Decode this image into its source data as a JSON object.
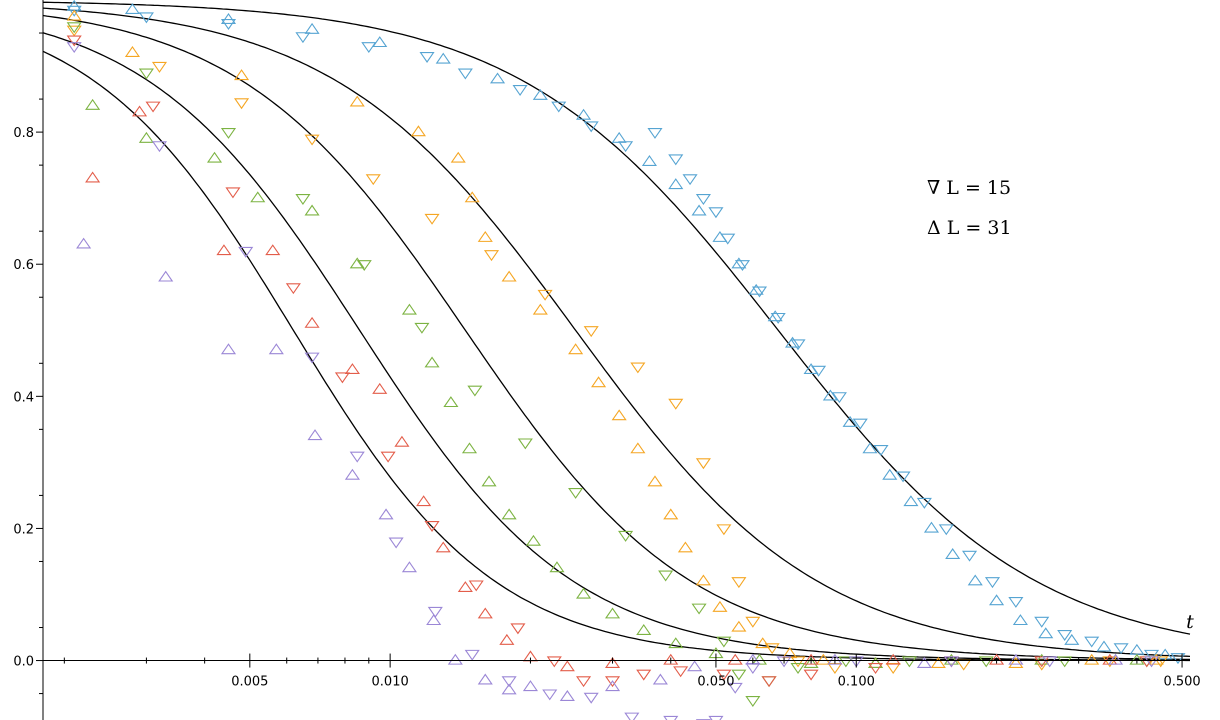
{
  "chart_data": {
    "type": "scatter",
    "title": "",
    "xlabel": "t",
    "ylabel": "",
    "x_scale": "log",
    "x_ticks": [
      0.005,
      0.01,
      0.05,
      0.1,
      0.5
    ],
    "x_tick_labels": [
      "0.005",
      "0.010",
      "0.050",
      "0.100",
      "0.500"
    ],
    "y_ticks": [
      0.0,
      0.2,
      0.4,
      0.6,
      0.8
    ],
    "y_tick_labels": [
      "0.0",
      "0.2",
      "0.4",
      "0.6",
      "0.8"
    ],
    "xlim": [
      0.0018,
      0.52
    ],
    "ylim": [
      -0.09,
      1.0
    ],
    "grid": false,
    "legend_position": "right",
    "legend": [
      {
        "marker": "triangle-down",
        "text": "∇ L = 15"
      },
      {
        "marker": "triangle-up",
        "text": "Δ L = 31"
      }
    ],
    "series": [
      {
        "color": "#56a4d2",
        "fit_midpoint": 0.068,
        "fit_width": 0.64,
        "L15": [
          [
            0.0021,
            0.985
          ],
          [
            0.003,
            0.975
          ],
          [
            0.0045,
            0.965
          ],
          [
            0.0065,
            0.945
          ],
          [
            0.009,
            0.93
          ],
          [
            0.012,
            0.915
          ],
          [
            0.0145,
            0.89
          ],
          [
            0.019,
            0.865
          ],
          [
            0.023,
            0.84
          ],
          [
            0.027,
            0.81
          ],
          [
            0.032,
            0.78
          ],
          [
            0.037,
            0.8
          ],
          [
            0.041,
            0.76
          ],
          [
            0.044,
            0.73
          ],
          [
            0.047,
            0.7
          ],
          [
            0.05,
            0.68
          ],
          [
            0.053,
            0.64
          ],
          [
            0.057,
            0.6
          ],
          [
            0.062,
            0.56
          ],
          [
            0.068,
            0.52
          ],
          [
            0.075,
            0.48
          ],
          [
            0.083,
            0.44
          ],
          [
            0.092,
            0.4
          ],
          [
            0.102,
            0.36
          ],
          [
            0.113,
            0.32
          ],
          [
            0.126,
            0.28
          ],
          [
            0.14,
            0.24
          ],
          [
            0.156,
            0.2
          ],
          [
            0.175,
            0.16
          ],
          [
            0.196,
            0.12
          ],
          [
            0.22,
            0.09
          ],
          [
            0.25,
            0.06
          ],
          [
            0.28,
            0.04
          ],
          [
            0.32,
            0.03
          ],
          [
            0.37,
            0.02
          ],
          [
            0.43,
            0.01
          ],
          [
            0.49,
            0.005
          ]
        ],
        "L31": [
          [
            0.0021,
            0.99
          ],
          [
            0.0028,
            0.985
          ],
          [
            0.0045,
            0.97
          ],
          [
            0.0068,
            0.955
          ],
          [
            0.0095,
            0.935
          ],
          [
            0.013,
            0.91
          ],
          [
            0.017,
            0.88
          ],
          [
            0.021,
            0.855
          ],
          [
            0.026,
            0.825
          ],
          [
            0.031,
            0.79
          ],
          [
            0.036,
            0.755
          ],
          [
            0.041,
            0.72
          ],
          [
            0.046,
            0.68
          ],
          [
            0.051,
            0.64
          ],
          [
            0.056,
            0.6
          ],
          [
            0.061,
            0.56
          ],
          [
            0.067,
            0.52
          ],
          [
            0.073,
            0.48
          ],
          [
            0.08,
            0.44
          ],
          [
            0.088,
            0.4
          ],
          [
            0.097,
            0.36
          ],
          [
            0.107,
            0.32
          ],
          [
            0.118,
            0.28
          ],
          [
            0.131,
            0.24
          ],
          [
            0.145,
            0.2
          ],
          [
            0.161,
            0.16
          ],
          [
            0.18,
            0.12
          ],
          [
            0.2,
            0.09
          ],
          [
            0.225,
            0.06
          ],
          [
            0.255,
            0.04
          ],
          [
            0.29,
            0.03
          ],
          [
            0.34,
            0.02
          ],
          [
            0.4,
            0.015
          ],
          [
            0.46,
            0.008
          ]
        ]
      },
      {
        "color": "#f5a623",
        "fit_midpoint": 0.025,
        "fit_width": 0.6,
        "L15": [
          [
            0.0021,
            0.955
          ],
          [
            0.0032,
            0.9
          ],
          [
            0.0048,
            0.845
          ],
          [
            0.0068,
            0.79
          ],
          [
            0.0092,
            0.73
          ],
          [
            0.0123,
            0.67
          ],
          [
            0.0165,
            0.615
          ],
          [
            0.0215,
            0.555
          ],
          [
            0.027,
            0.5
          ],
          [
            0.034,
            0.445
          ],
          [
            0.041,
            0.39
          ],
          [
            0.047,
            0.3
          ],
          [
            0.052,
            0.2
          ],
          [
            0.056,
            0.12
          ],
          [
            0.06,
            0.06
          ],
          [
            0.066,
            0.02
          ],
          [
            0.075,
            0.0
          ],
          [
            0.09,
            -0.01
          ],
          [
            0.12,
            -0.01
          ],
          [
            0.17,
            -0.005
          ],
          [
            0.25,
            -0.005
          ],
          [
            0.35,
            0.0
          ],
          [
            0.45,
            0.0
          ]
        ],
        "L31": [
          [
            0.0021,
            0.975
          ],
          [
            0.0028,
            0.92
          ],
          [
            0.0048,
            0.885
          ],
          [
            0.0085,
            0.845
          ],
          [
            0.0115,
            0.8
          ],
          [
            0.014,
            0.76
          ],
          [
            0.015,
            0.7
          ],
          [
            0.016,
            0.64
          ],
          [
            0.018,
            0.58
          ],
          [
            0.021,
            0.53
          ],
          [
            0.025,
            0.47
          ],
          [
            0.028,
            0.42
          ],
          [
            0.031,
            0.37
          ],
          [
            0.034,
            0.32
          ],
          [
            0.037,
            0.27
          ],
          [
            0.04,
            0.22
          ],
          [
            0.043,
            0.17
          ],
          [
            0.047,
            0.12
          ],
          [
            0.051,
            0.08
          ],
          [
            0.056,
            0.05
          ],
          [
            0.063,
            0.025
          ],
          [
            0.072,
            0.01
          ],
          [
            0.085,
            0.0
          ],
          [
            0.11,
            -0.005
          ],
          [
            0.15,
            -0.005
          ],
          [
            0.22,
            -0.005
          ],
          [
            0.32,
            0.0
          ],
          [
            0.44,
            0.0
          ]
        ]
      },
      {
        "color": "#7cb342",
        "fit_midpoint": 0.0145,
        "fit_width": 0.56,
        "L15": [
          [
            0.0021,
            0.96
          ],
          [
            0.003,
            0.89
          ],
          [
            0.0045,
            0.8
          ],
          [
            0.0065,
            0.7
          ],
          [
            0.0088,
            0.6
          ],
          [
            0.0117,
            0.505
          ],
          [
            0.0152,
            0.41
          ],
          [
            0.0195,
            0.33
          ],
          [
            0.025,
            0.255
          ],
          [
            0.032,
            0.19
          ],
          [
            0.039,
            0.13
          ],
          [
            0.046,
            0.08
          ],
          [
            0.052,
            0.03
          ],
          [
            0.056,
            -0.02
          ],
          [
            0.06,
            -0.06
          ],
          [
            0.065,
            -0.03
          ],
          [
            0.075,
            -0.01
          ],
          [
            0.095,
            0.0
          ],
          [
            0.13,
            0.0
          ],
          [
            0.19,
            0.0
          ],
          [
            0.28,
            0.0
          ],
          [
            0.42,
            0.0
          ]
        ],
        "L31": [
          [
            0.0023,
            0.84
          ],
          [
            0.003,
            0.79
          ],
          [
            0.0042,
            0.76
          ],
          [
            0.0052,
            0.7
          ],
          [
            0.0068,
            0.68
          ],
          [
            0.0085,
            0.6
          ],
          [
            0.011,
            0.53
          ],
          [
            0.0123,
            0.45
          ],
          [
            0.0135,
            0.39
          ],
          [
            0.0148,
            0.32
          ],
          [
            0.0163,
            0.27
          ],
          [
            0.018,
            0.22
          ],
          [
            0.0203,
            0.18
          ],
          [
            0.0228,
            0.14
          ],
          [
            0.026,
            0.1
          ],
          [
            0.03,
            0.07
          ],
          [
            0.035,
            0.045
          ],
          [
            0.041,
            0.025
          ],
          [
            0.05,
            0.01
          ],
          [
            0.062,
            0.0
          ],
          [
            0.08,
            -0.005
          ],
          [
            0.11,
            -0.005
          ],
          [
            0.16,
            0.0
          ],
          [
            0.25,
            0.0
          ],
          [
            0.4,
            0.0
          ]
        ]
      },
      {
        "color": "#e35d4a",
        "fit_midpoint": 0.0086,
        "fit_width": 0.53,
        "L15": [
          [
            0.0021,
            0.94
          ],
          [
            0.0031,
            0.84
          ],
          [
            0.0046,
            0.71
          ],
          [
            0.0062,
            0.565
          ],
          [
            0.0079,
            0.43
          ],
          [
            0.0099,
            0.31
          ],
          [
            0.0123,
            0.205
          ],
          [
            0.0153,
            0.115
          ],
          [
            0.0188,
            0.05
          ],
          [
            0.0225,
            0.0
          ],
          [
            0.026,
            -0.03
          ],
          [
            0.03,
            -0.03
          ],
          [
            0.035,
            -0.02
          ],
          [
            0.042,
            -0.015
          ],
          [
            0.052,
            -0.02
          ],
          [
            0.065,
            -0.03
          ],
          [
            0.08,
            -0.02
          ],
          [
            0.11,
            -0.01
          ],
          [
            0.16,
            0.0
          ],
          [
            0.25,
            0.0
          ],
          [
            0.42,
            0.0
          ]
        ],
        "L31": [
          [
            0.0023,
            0.73
          ],
          [
            0.0029,
            0.83
          ],
          [
            0.0044,
            0.62
          ],
          [
            0.0056,
            0.62
          ],
          [
            0.0068,
            0.51
          ],
          [
            0.0083,
            0.44
          ],
          [
            0.0095,
            0.41
          ],
          [
            0.0106,
            0.33
          ],
          [
            0.0118,
            0.24
          ],
          [
            0.013,
            0.17
          ],
          [
            0.0145,
            0.11
          ],
          [
            0.016,
            0.07
          ],
          [
            0.0178,
            0.03
          ],
          [
            0.02,
            0.005
          ],
          [
            0.024,
            -0.01
          ],
          [
            0.03,
            -0.005
          ],
          [
            0.04,
            0.0
          ],
          [
            0.055,
            0.0
          ],
          [
            0.08,
            0.0
          ],
          [
            0.12,
            0.0
          ],
          [
            0.2,
            0.0
          ],
          [
            0.35,
            0.0
          ]
        ]
      },
      {
        "color": "#9b87d6",
        "fit_midpoint": 0.0062,
        "fit_width": 0.5,
        "L15": [
          [
            0.0021,
            0.93
          ],
          [
            0.0032,
            0.78
          ],
          [
            0.0049,
            0.62
          ],
          [
            0.0068,
            0.46
          ],
          [
            0.0085,
            0.31
          ],
          [
            0.0103,
            0.18
          ],
          [
            0.0125,
            0.075
          ],
          [
            0.015,
            0.01
          ],
          [
            0.018,
            -0.03
          ],
          [
            0.022,
            -0.05
          ],
          [
            0.027,
            -0.055
          ],
          [
            0.033,
            -0.085
          ],
          [
            0.04,
            -0.09
          ],
          [
            0.047,
            -0.095
          ],
          [
            0.05,
            -0.09
          ],
          [
            0.055,
            -0.04
          ],
          [
            0.06,
            -0.01
          ],
          [
            0.07,
            0.0
          ],
          [
            0.1,
            0.0
          ],
          [
            0.16,
            0.0
          ],
          [
            0.26,
            0.0
          ],
          [
            0.43,
            0.0
          ]
        ],
        "L31": [
          [
            0.0022,
            0.63
          ],
          [
            0.0033,
            0.58
          ],
          [
            0.0045,
            0.47
          ],
          [
            0.0057,
            0.47
          ],
          [
            0.0069,
            0.34
          ],
          [
            0.0083,
            0.28
          ],
          [
            0.0098,
            0.22
          ],
          [
            0.011,
            0.14
          ],
          [
            0.0124,
            0.06
          ],
          [
            0.0138,
            0.0
          ],
          [
            0.016,
            -0.03
          ],
          [
            0.018,
            -0.045
          ],
          [
            0.02,
            -0.04
          ],
          [
            0.024,
            -0.055
          ],
          [
            0.03,
            -0.04
          ],
          [
            0.038,
            -0.03
          ],
          [
            0.045,
            -0.01
          ],
          [
            0.06,
            0.0
          ],
          [
            0.09,
            0.0
          ],
          [
            0.14,
            -0.005
          ],
          [
            0.22,
            0.0
          ],
          [
            0.36,
            0.0
          ]
        ]
      }
    ]
  }
}
